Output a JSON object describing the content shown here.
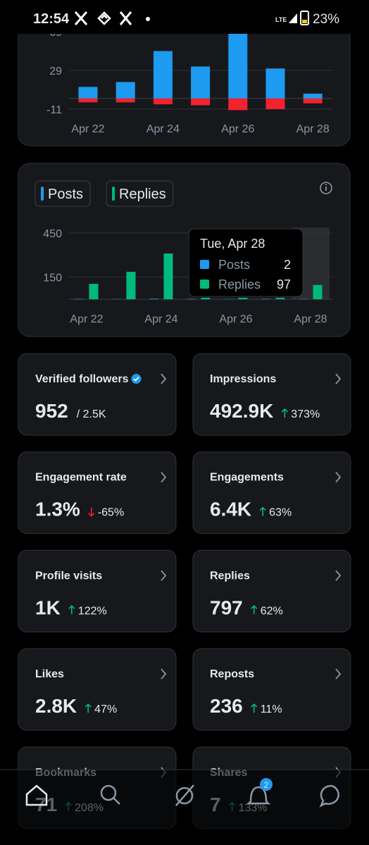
{
  "status_bar": {
    "time": "12:54",
    "network": "LTE",
    "battery": "23%"
  },
  "chart_data": [
    {
      "type": "bar",
      "mode": "diverging",
      "categories": [
        "Apr 22",
        null,
        "Apr 24",
        null,
        "Apr 26",
        null,
        "Apr 28"
      ],
      "series": [
        {
          "color": "#1d9bf0",
          "values": [
            12,
            17,
            49,
            33,
            67,
            31,
            5
          ]
        },
        {
          "color": "#f4212e",
          "values": [
            -4,
            -4,
            -6,
            -7,
            -12,
            -11,
            -5
          ]
        }
      ],
      "ylim": [
        -11,
        69
      ],
      "yticks": [
        69,
        29,
        -11
      ],
      "grid": true
    },
    {
      "type": "bar",
      "mode": "grouped",
      "categories": [
        "Apr 22",
        null,
        "Apr 24",
        null,
        "Apr 26",
        null,
        "Apr 28"
      ],
      "series": [
        {
          "name": "Posts",
          "color": "#1d9bf0",
          "values": [
            3,
            2,
            4,
            3,
            2,
            3,
            2
          ]
        },
        {
          "name": "Replies",
          "color": "#00ba7c",
          "values": [
            105,
            187,
            311,
            10,
            10,
            10,
            97
          ]
        }
      ],
      "ylim": [
        0,
        450
      ],
      "yticks": [
        450,
        150
      ],
      "grid": true,
      "tooltip": {
        "title": "Tue, Apr 28",
        "index": 6
      }
    }
  ],
  "cards": [
    {
      "label": "Verified followers",
      "value": "952",
      "verified": true,
      "sub": "/ 2.5K"
    },
    {
      "label": "Impressions",
      "value": "492.9K",
      "change": "373%",
      "direction": "up"
    },
    {
      "label": "Engagement rate",
      "value": "1.3%",
      "change": "-65%",
      "direction": "down"
    },
    {
      "label": "Engagements",
      "value": "6.4K",
      "change": "63%",
      "direction": "up"
    },
    {
      "label": "Profile visits",
      "value": "1K",
      "change": "122%",
      "direction": "up"
    },
    {
      "label": "Replies",
      "value": "797",
      "change": "62%",
      "direction": "up"
    },
    {
      "label": "Likes",
      "value": "2.8K",
      "change": "47%",
      "direction": "up"
    },
    {
      "label": "Reposts",
      "value": "236",
      "change": "11%",
      "direction": "up"
    },
    {
      "label": "Bookmarks",
      "value": "71",
      "change": "208%",
      "direction": "up"
    },
    {
      "label": "Shares",
      "value": "7",
      "change": "133%",
      "direction": "up"
    }
  ],
  "nav": {
    "badge": 2
  }
}
